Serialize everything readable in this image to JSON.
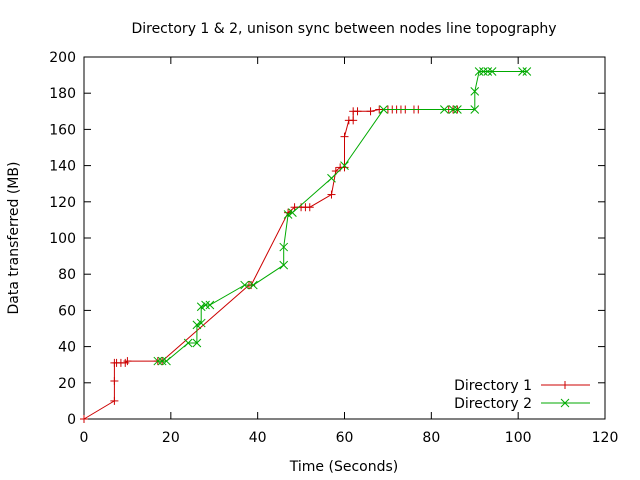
{
  "chart_data": {
    "type": "line",
    "title": "Directory 1 & 2, unison sync between nodes line topography",
    "xlabel": "Time (Seconds)",
    "ylabel": "Data transferred (MB)",
    "xlim": [
      0,
      120
    ],
    "ylim": [
      0,
      200
    ],
    "xticks": [
      0,
      20,
      40,
      60,
      80,
      100,
      120
    ],
    "yticks": [
      0,
      20,
      40,
      60,
      80,
      100,
      120,
      140,
      160,
      180,
      200
    ],
    "grid": false,
    "legend_position": "bottom-right",
    "series": [
      {
        "name": "Directory 1",
        "color": "#cc0000",
        "marker": "plus",
        "x": [
          0,
          7,
          7,
          7,
          7.5,
          8.5,
          9.5,
          10,
          17,
          18,
          38,
          38.5,
          47,
          48.5,
          50,
          51,
          52,
          57,
          58,
          59,
          60,
          60,
          61,
          62,
          62,
          63,
          66,
          68,
          70,
          71,
          72,
          73,
          74,
          76,
          77,
          84,
          85,
          86
        ],
        "y": [
          0,
          10,
          21,
          31,
          31,
          31,
          31,
          32,
          32,
          32,
          74,
          74,
          114,
          117,
          117,
          117,
          117,
          124,
          137,
          139,
          139,
          156,
          165,
          165,
          170,
          170,
          170,
          171,
          171,
          171,
          171,
          171,
          171,
          171,
          171,
          171,
          171,
          171
        ]
      },
      {
        "name": "Directory 2",
        "color": "#00aa00",
        "marker": "cross",
        "x": [
          17,
          18,
          19,
          24,
          26,
          26,
          27,
          27,
          28,
          29,
          37,
          39,
          46,
          46,
          47,
          48,
          57,
          60,
          69,
          83,
          85,
          86,
          90,
          90,
          91,
          92,
          93,
          94,
          101,
          102
        ],
        "y": [
          32,
          32,
          32,
          42,
          42,
          52,
          53,
          62,
          63,
          63,
          74,
          74,
          85,
          95,
          113,
          114,
          133,
          140,
          171,
          171,
          171,
          171,
          171,
          181,
          192,
          192,
          192,
          192,
          192,
          192
        ]
      }
    ]
  }
}
